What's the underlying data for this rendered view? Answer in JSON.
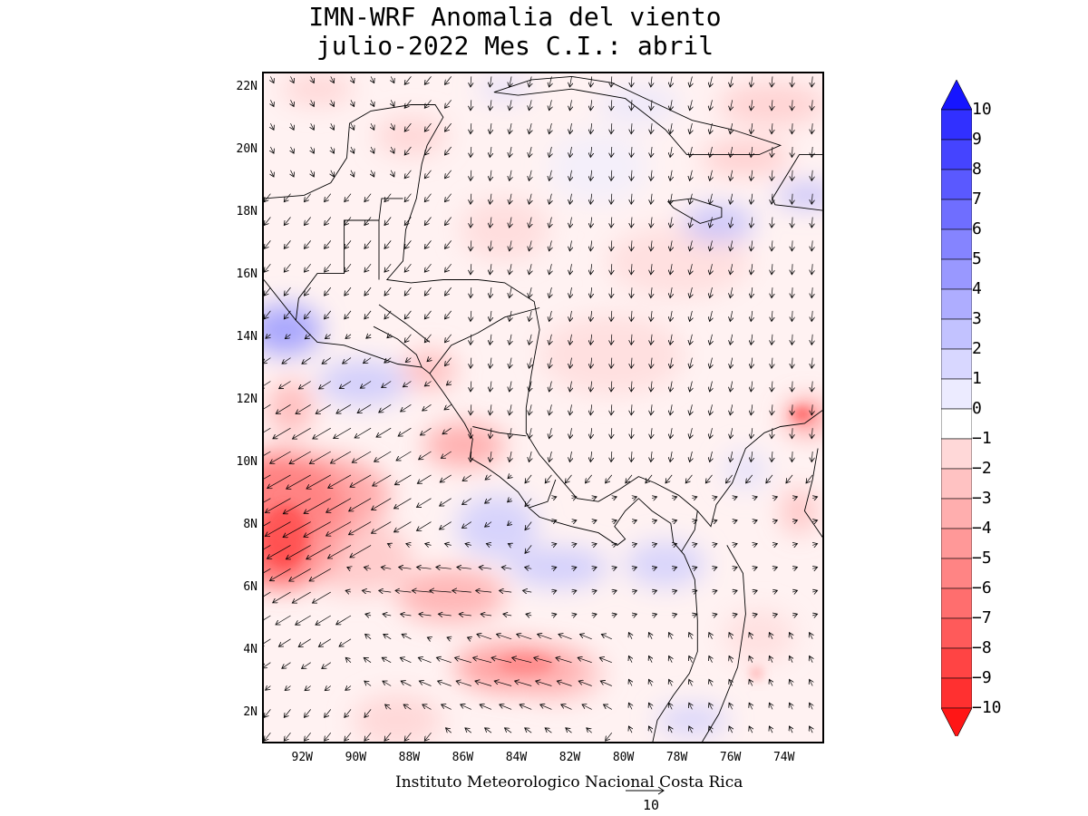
{
  "title": {
    "line1": "IMN-WRF Anomalia del viento",
    "line2": "julio-2022 Mes C.I.: abril"
  },
  "map": {
    "lon_range": [
      -93.5,
      -72.5
    ],
    "lat_range": [
      1.0,
      22.5
    ],
    "lat_ticks": [
      "22N",
      "20N",
      "18N",
      "16N",
      "14N",
      "12N",
      "10N",
      "8N",
      "6N",
      "4N",
      "2N"
    ],
    "lon_ticks": [
      "92W",
      "90W",
      "88W",
      "86W",
      "84W",
      "82W",
      "80W",
      "78W",
      "76W",
      "74W"
    ],
    "field": "wind speed anomaly (shaded) and wind anomaly vectors",
    "coastline_color": "#000000",
    "vector_color": "#000000"
  },
  "colorbar": {
    "labels": [
      "10",
      "9",
      "8",
      "7",
      "6",
      "5",
      "4",
      "3",
      "2",
      "1",
      "0",
      "−1",
      "−2",
      "−3",
      "−4",
      "−5",
      "−6",
      "−7",
      "−8",
      "−9",
      "−10"
    ],
    "colors_positive": [
      "#ecebff",
      "#d8d7ff",
      "#c2c2ff",
      "#aeadff",
      "#9998ff",
      "#8584ff",
      "#6f6eff",
      "#5a59ff",
      "#4544ff",
      "#3130ff",
      "#1615ff"
    ],
    "colors_negative": [
      "#ffecec",
      "#ffd8d8",
      "#ffc2c2",
      "#ffaeae",
      "#ff9898",
      "#ff8484",
      "#ff6e6e",
      "#ff5a5a",
      "#ff4444",
      "#ff3030",
      "#ff1616"
    ]
  },
  "footer": {
    "credit": "Instituto Meteorologico Nacional Costa Rica",
    "reference_vector_label": "10"
  }
}
